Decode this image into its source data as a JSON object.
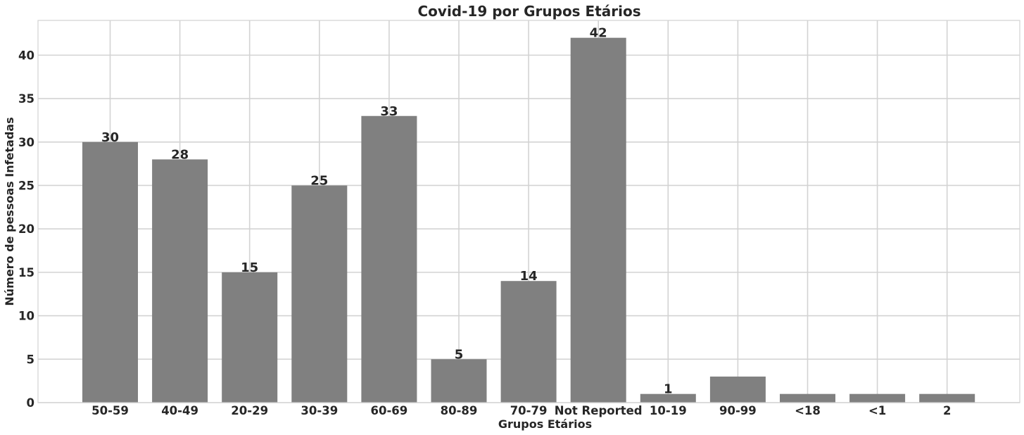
{
  "chart_data": {
    "type": "bar",
    "title": "Covid-19 por Grupos Etários",
    "xlabel": "Grupos Etários",
    "ylabel": "Número de pessoas Infetadas",
    "categories": [
      "50-59",
      "40-49",
      "20-29",
      "30-39",
      "60-69",
      "80-89",
      "70-79",
      "Not Reported",
      "10-19",
      "90-99",
      "<18",
      "<1",
      "2"
    ],
    "values": [
      30,
      28,
      15,
      25,
      33,
      5,
      14,
      42,
      1,
      3,
      1,
      1,
      1
    ],
    "data_labels": [
      "30",
      "28",
      "15",
      "25",
      "33",
      "5",
      "14",
      "42",
      "1",
      "",
      "",
      "",
      ""
    ],
    "ylim": [
      0,
      44
    ],
    "yticks": [
      0,
      5,
      10,
      15,
      20,
      25,
      30,
      35,
      40
    ],
    "grid": true,
    "bar_color": "#808080",
    "grid_color": "#d3d3d3"
  }
}
